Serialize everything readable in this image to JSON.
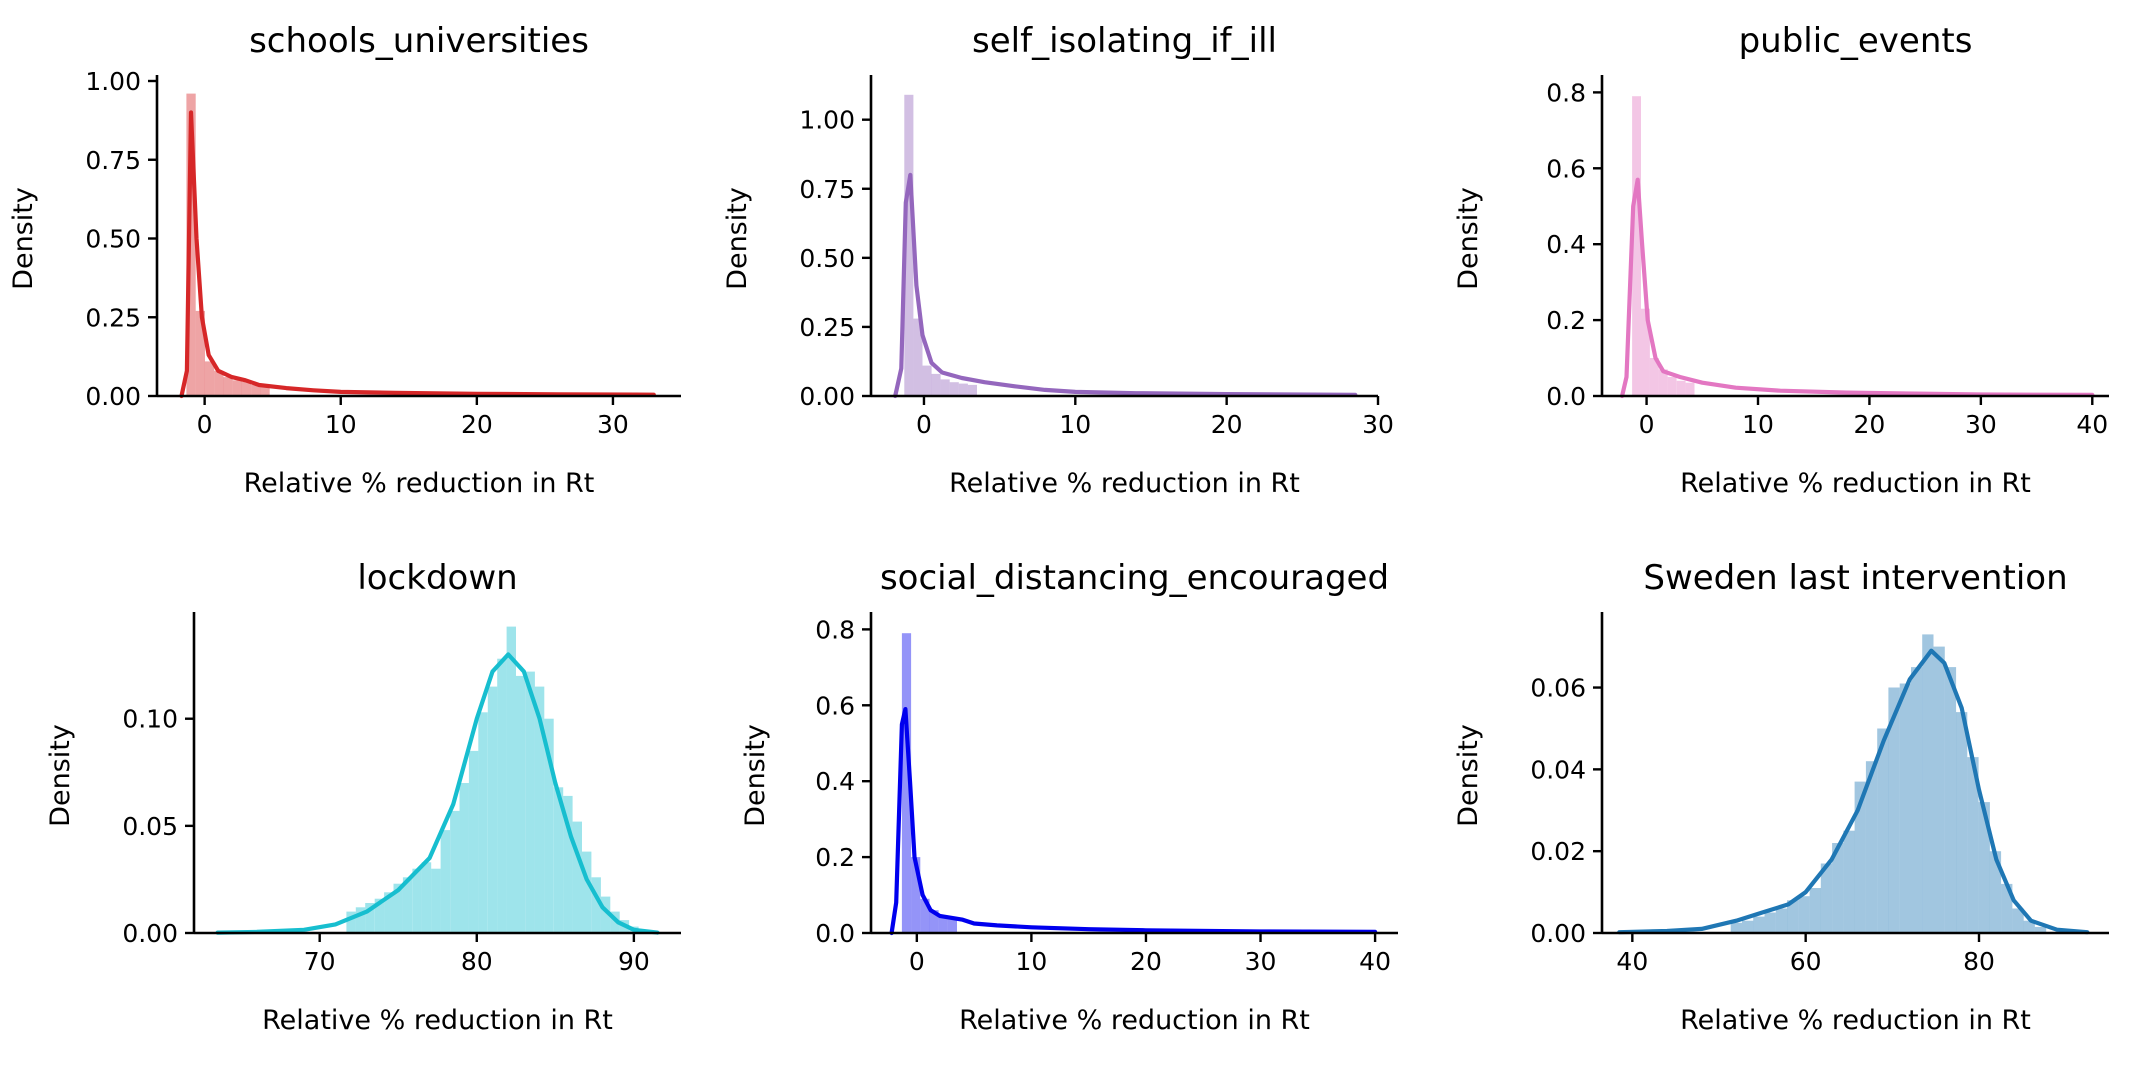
{
  "colors": {
    "axis": "#000000"
  },
  "chart_data": [
    {
      "type": "histogram-kde",
      "title": "schools_universities",
      "xlabel": "Relative % reduction in Rt",
      "ylabel": "Density",
      "color": "#d62728",
      "xlim": [
        -3.5,
        35
      ],
      "ylim": [
        0,
        1.0
      ],
      "xticks": [
        0,
        10,
        20,
        30
      ],
      "yticks": [
        "0.00",
        "0.25",
        "0.50",
        "0.75",
        "1.00"
      ],
      "bin_width": 0.68,
      "bins": [
        {
          "x": -1.0,
          "y": 0.96
        },
        {
          "x": -0.32,
          "y": 0.27
        },
        {
          "x": 0.36,
          "y": 0.11
        },
        {
          "x": 1.04,
          "y": 0.08
        },
        {
          "x": 1.72,
          "y": 0.06
        },
        {
          "x": 2.4,
          "y": 0.05
        },
        {
          "x": 3.08,
          "y": 0.045
        },
        {
          "x": 3.76,
          "y": 0.035
        },
        {
          "x": 4.44,
          "y": 0.03
        }
      ],
      "kde": [
        [
          -1.7,
          0
        ],
        [
          -1.3,
          0.08
        ],
        [
          -1.0,
          0.9
        ],
        [
          -0.6,
          0.5
        ],
        [
          -0.2,
          0.25
        ],
        [
          0.3,
          0.13
        ],
        [
          1.0,
          0.08
        ],
        [
          2.0,
          0.06
        ],
        [
          3.0,
          0.05
        ],
        [
          4.0,
          0.035
        ],
        [
          6.0,
          0.025
        ],
        [
          8.0,
          0.018
        ],
        [
          10.0,
          0.013
        ],
        [
          14.0,
          0.01
        ],
        [
          20.0,
          0.007
        ],
        [
          26.0,
          0.005
        ],
        [
          33.0,
          0.004
        ]
      ]
    },
    {
      "type": "histogram-kde",
      "title": "self_isolating_if_ill",
      "xlabel": "Relative % reduction in Rt",
      "ylabel": "Density",
      "color": "#9467bd",
      "xlim": [
        -3.5,
        30
      ],
      "ylim": [
        0,
        1.14
      ],
      "xticks": [
        0,
        10,
        20,
        30
      ],
      "yticks": [
        "0.00",
        "0.25",
        "0.50",
        "0.75",
        "1.00"
      ],
      "bin_width": 0.6,
      "bins": [
        {
          "x": -1.0,
          "y": 1.09
        },
        {
          "x": -0.4,
          "y": 0.28
        },
        {
          "x": 0.2,
          "y": 0.11
        },
        {
          "x": 0.8,
          "y": 0.08
        },
        {
          "x": 1.4,
          "y": 0.06
        },
        {
          "x": 2.0,
          "y": 0.05
        },
        {
          "x": 2.6,
          "y": 0.045
        },
        {
          "x": 3.2,
          "y": 0.04
        }
      ],
      "kde": [
        [
          -1.9,
          0
        ],
        [
          -1.5,
          0.1
        ],
        [
          -1.2,
          0.7
        ],
        [
          -0.9,
          0.8
        ],
        [
          -0.5,
          0.4
        ],
        [
          -0.1,
          0.22
        ],
        [
          0.5,
          0.12
        ],
        [
          1.2,
          0.085
        ],
        [
          2.5,
          0.065
        ],
        [
          4.0,
          0.05
        ],
        [
          6.0,
          0.035
        ],
        [
          8.0,
          0.022
        ],
        [
          10.0,
          0.015
        ],
        [
          14.0,
          0.01
        ],
        [
          20.0,
          0.007
        ],
        [
          28.5,
          0.004
        ]
      ]
    },
    {
      "type": "histogram-kde",
      "title": "public_events",
      "xlabel": "Relative % reduction in Rt",
      "ylabel": "Density",
      "color": "#e377c2",
      "xlim": [
        -4,
        41.5
      ],
      "ylim": [
        0,
        0.83
      ],
      "xticks": [
        0,
        10,
        20,
        30,
        40
      ],
      "yticks": [
        "0.0",
        "0.2",
        "0.4",
        "0.6",
        "0.8"
      ],
      "bin_width": 0.8,
      "bins": [
        {
          "x": -0.9,
          "y": 0.79
        },
        {
          "x": -0.1,
          "y": 0.23
        },
        {
          "x": 0.7,
          "y": 0.1
        },
        {
          "x": 1.5,
          "y": 0.07
        },
        {
          "x": 2.3,
          "y": 0.05
        },
        {
          "x": 3.1,
          "y": 0.04
        },
        {
          "x": 3.9,
          "y": 0.035
        }
      ],
      "kde": [
        [
          -2.2,
          0
        ],
        [
          -1.8,
          0.05
        ],
        [
          -1.2,
          0.5
        ],
        [
          -0.8,
          0.57
        ],
        [
          -0.4,
          0.4
        ],
        [
          0.1,
          0.2
        ],
        [
          0.8,
          0.1
        ],
        [
          1.5,
          0.065
        ],
        [
          3.0,
          0.05
        ],
        [
          5.0,
          0.035
        ],
        [
          8.0,
          0.022
        ],
        [
          12.0,
          0.014
        ],
        [
          18.0,
          0.009
        ],
        [
          25.0,
          0.006
        ],
        [
          30.0,
          0.004
        ],
        [
          40.0,
          0.003
        ]
      ]
    },
    {
      "type": "histogram-kde",
      "title": "lockdown",
      "xlabel": "Relative % reduction in Rt",
      "ylabel": "Density",
      "color": "#17becf",
      "xlim": [
        62,
        93
      ],
      "ylim": [
        0,
        0.147
      ],
      "xticks": [
        70,
        80,
        90
      ],
      "yticks": [
        "0.00",
        "0.05",
        "0.10"
      ],
      "bin_width": 0.6,
      "bins": [
        {
          "x": 72.0,
          "y": 0.01
        },
        {
          "x": 72.6,
          "y": 0.012
        },
        {
          "x": 73.2,
          "y": 0.014
        },
        {
          "x": 73.8,
          "y": 0.016
        },
        {
          "x": 74.4,
          "y": 0.019
        },
        {
          "x": 75.0,
          "y": 0.023
        },
        {
          "x": 75.6,
          "y": 0.026
        },
        {
          "x": 76.2,
          "y": 0.03
        },
        {
          "x": 76.8,
          "y": 0.033
        },
        {
          "x": 77.4,
          "y": 0.03
        },
        {
          "x": 78.0,
          "y": 0.048
        },
        {
          "x": 78.6,
          "y": 0.057
        },
        {
          "x": 79.2,
          "y": 0.07
        },
        {
          "x": 79.8,
          "y": 0.085
        },
        {
          "x": 80.4,
          "y": 0.103
        },
        {
          "x": 81.0,
          "y": 0.115
        },
        {
          "x": 81.6,
          "y": 0.128
        },
        {
          "x": 82.2,
          "y": 0.143
        },
        {
          "x": 82.8,
          "y": 0.12
        },
        {
          "x": 83.4,
          "y": 0.122
        },
        {
          "x": 84.0,
          "y": 0.115
        },
        {
          "x": 84.6,
          "y": 0.1
        },
        {
          "x": 85.2,
          "y": 0.068
        },
        {
          "x": 85.8,
          "y": 0.064
        },
        {
          "x": 86.4,
          "y": 0.052
        },
        {
          "x": 87.0,
          "y": 0.038
        },
        {
          "x": 87.6,
          "y": 0.026
        },
        {
          "x": 88.2,
          "y": 0.017
        },
        {
          "x": 88.8,
          "y": 0.01
        },
        {
          "x": 89.4,
          "y": 0.006
        },
        {
          "x": 90.0,
          "y": 0.003
        }
      ],
      "kde": [
        [
          63.5,
          0.0002
        ],
        [
          66.0,
          0.0005
        ],
        [
          69.0,
          0.0015
        ],
        [
          71.0,
          0.004
        ],
        [
          73.0,
          0.01
        ],
        [
          75.0,
          0.02
        ],
        [
          77.0,
          0.035
        ],
        [
          78.5,
          0.06
        ],
        [
          80.0,
          0.1
        ],
        [
          81.0,
          0.122
        ],
        [
          82.0,
          0.13
        ],
        [
          83.0,
          0.122
        ],
        [
          84.0,
          0.1
        ],
        [
          85.0,
          0.07
        ],
        [
          86.0,
          0.045
        ],
        [
          87.0,
          0.025
        ],
        [
          88.0,
          0.012
        ],
        [
          89.0,
          0.005
        ],
        [
          90.0,
          0.0015
        ],
        [
          91.5,
          0.0002
        ]
      ]
    },
    {
      "type": "histogram-kde",
      "title": "social_distancing_encouraged",
      "xlabel": "Relative % reduction in Rt",
      "ylabel": "Density",
      "color": "#0000ee",
      "xlim": [
        -4,
        42
      ],
      "ylim": [
        0,
        0.83
      ],
      "xticks": [
        0,
        10,
        20,
        30,
        40
      ],
      "yticks": [
        "0.0",
        "0.2",
        "0.4",
        "0.6",
        "0.8"
      ],
      "bin_width": 0.8,
      "bins": [
        {
          "x": -0.9,
          "y": 0.79
        },
        {
          "x": -0.1,
          "y": 0.2
        },
        {
          "x": 0.7,
          "y": 0.09
        },
        {
          "x": 1.5,
          "y": 0.06
        },
        {
          "x": 2.3,
          "y": 0.045
        },
        {
          "x": 3.1,
          "y": 0.04
        }
      ],
      "kde": [
        [
          -2.2,
          0
        ],
        [
          -1.8,
          0.08
        ],
        [
          -1.3,
          0.55
        ],
        [
          -1.0,
          0.59
        ],
        [
          -0.6,
          0.4
        ],
        [
          -0.2,
          0.2
        ],
        [
          0.5,
          0.1
        ],
        [
          1.2,
          0.06
        ],
        [
          2.0,
          0.045
        ],
        [
          3.0,
          0.04
        ],
        [
          4.0,
          0.035
        ],
        [
          5.0,
          0.025
        ],
        [
          7.0,
          0.02
        ],
        [
          10.0,
          0.015
        ],
        [
          15.0,
          0.01
        ],
        [
          20.0,
          0.007
        ],
        [
          30.0,
          0.004
        ],
        [
          40.0,
          0.003
        ]
      ]
    },
    {
      "type": "histogram-kde",
      "title": "Sweden last intervention",
      "xlabel": "Relative % reduction in Rt",
      "ylabel": "Density",
      "color": "#1f77b4",
      "xlim": [
        36.5,
        95
      ],
      "ylim": [
        0,
        0.077
      ],
      "xticks": [
        40,
        60,
        80
      ],
      "yticks": [
        "0.00",
        "0.02",
        "0.04",
        "0.06"
      ],
      "bin_width": 1.3,
      "bins": [
        {
          "x": 52.0,
          "y": 0.0025
        },
        {
          "x": 53.3,
          "y": 0.003
        },
        {
          "x": 54.6,
          "y": 0.004
        },
        {
          "x": 55.9,
          "y": 0.005
        },
        {
          "x": 57.2,
          "y": 0.006
        },
        {
          "x": 58.5,
          "y": 0.008
        },
        {
          "x": 59.8,
          "y": 0.009
        },
        {
          "x": 61.1,
          "y": 0.011
        },
        {
          "x": 62.4,
          "y": 0.017
        },
        {
          "x": 63.7,
          "y": 0.022
        },
        {
          "x": 65.0,
          "y": 0.025
        },
        {
          "x": 66.3,
          "y": 0.037
        },
        {
          "x": 67.6,
          "y": 0.042
        },
        {
          "x": 68.9,
          "y": 0.05
        },
        {
          "x": 70.2,
          "y": 0.06
        },
        {
          "x": 71.5,
          "y": 0.061
        },
        {
          "x": 72.8,
          "y": 0.065
        },
        {
          "x": 74.1,
          "y": 0.073
        },
        {
          "x": 75.4,
          "y": 0.07
        },
        {
          "x": 76.7,
          "y": 0.065
        },
        {
          "x": 78.0,
          "y": 0.054
        },
        {
          "x": 79.3,
          "y": 0.043
        },
        {
          "x": 80.6,
          "y": 0.032
        },
        {
          "x": 81.9,
          "y": 0.02
        },
        {
          "x": 83.2,
          "y": 0.012
        },
        {
          "x": 84.5,
          "y": 0.006
        },
        {
          "x": 85.8,
          "y": 0.003
        },
        {
          "x": 87.1,
          "y": 0.0015
        }
      ],
      "kde": [
        [
          38.5,
          0.0002
        ],
        [
          44.0,
          0.0005
        ],
        [
          48.0,
          0.001
        ],
        [
          52.0,
          0.003
        ],
        [
          55.0,
          0.005
        ],
        [
          58.0,
          0.007
        ],
        [
          60.0,
          0.01
        ],
        [
          63.0,
          0.018
        ],
        [
          66.0,
          0.03
        ],
        [
          69.0,
          0.047
        ],
        [
          72.0,
          0.062
        ],
        [
          74.5,
          0.069
        ],
        [
          76.0,
          0.066
        ],
        [
          78.0,
          0.055
        ],
        [
          80.0,
          0.035
        ],
        [
          82.0,
          0.018
        ],
        [
          84.0,
          0.008
        ],
        [
          86.0,
          0.003
        ],
        [
          89.0,
          0.0008
        ],
        [
          92.5,
          0.0002
        ]
      ]
    }
  ]
}
